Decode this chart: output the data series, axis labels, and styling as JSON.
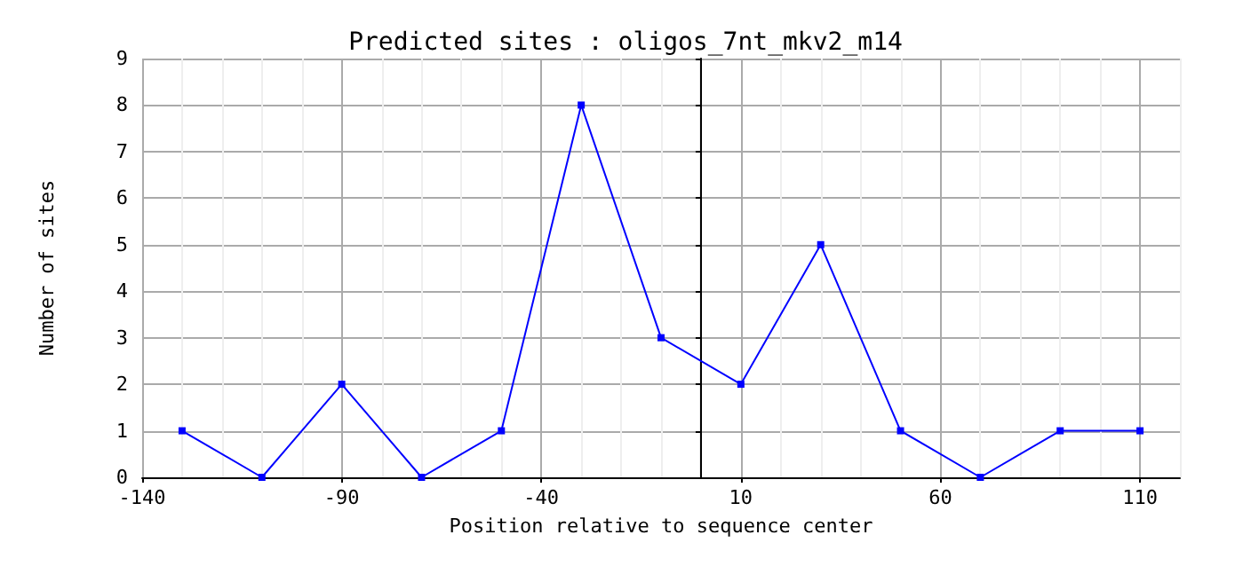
{
  "chart_data": {
    "type": "line",
    "title": "Predicted sites : oligos_7nt_mkv2_m14",
    "xlabel": "Position relative to sequence center",
    "ylabel": "Number of sites",
    "x": [
      -130,
      -110,
      -90,
      -70,
      -50,
      -30,
      -10,
      10,
      30,
      50,
      70,
      90,
      110
    ],
    "series": [
      {
        "color": "#0000ff",
        "values": [
          1,
          0,
          2,
          0,
          1,
          8,
          3,
          2,
          5,
          1,
          0,
          1,
          1
        ]
      }
    ],
    "xlim": [
      -140,
      120
    ],
    "xticks": [
      -140,
      {
        "value": -130,
        "label": null
      },
      {
        "value": -120,
        "label": null
      },
      {
        "value": -110,
        "label": null
      },
      {
        "value": -100,
        "label": null
      },
      -90,
      {
        "value": -80,
        "label": null
      },
      {
        "value": -70,
        "label": null
      },
      {
        "value": -60,
        "label": null
      },
      {
        "value": -50,
        "label": null
      },
      -40,
      {
        "value": -30,
        "label": null
      },
      {
        "value": -20,
        "label": null
      },
      {
        "value": -10,
        "label": null
      },
      10,
      {
        "value": 20,
        "label": null
      },
      {
        "value": 30,
        "label": null
      },
      {
        "value": 40,
        "label": null
      },
      {
        "value": 50,
        "label": null
      },
      60,
      {
        "value": 70,
        "label": null
      },
      {
        "value": 80,
        "label": null
      },
      {
        "value": 90,
        "label": null
      },
      {
        "value": 100,
        "label": null
      },
      110,
      {
        "value": 120,
        "label": null
      }
    ],
    "ylim": [
      0,
      9
    ],
    "yticks": [
      0,
      1,
      2,
      3,
      4,
      5,
      6,
      7,
      8,
      9
    ],
    "ref_lines": [
      {
        "axis": "x",
        "value": 0,
        "color": "#000000"
      }
    ],
    "grid": true,
    "marker": "square",
    "line_style": "solid"
  }
}
